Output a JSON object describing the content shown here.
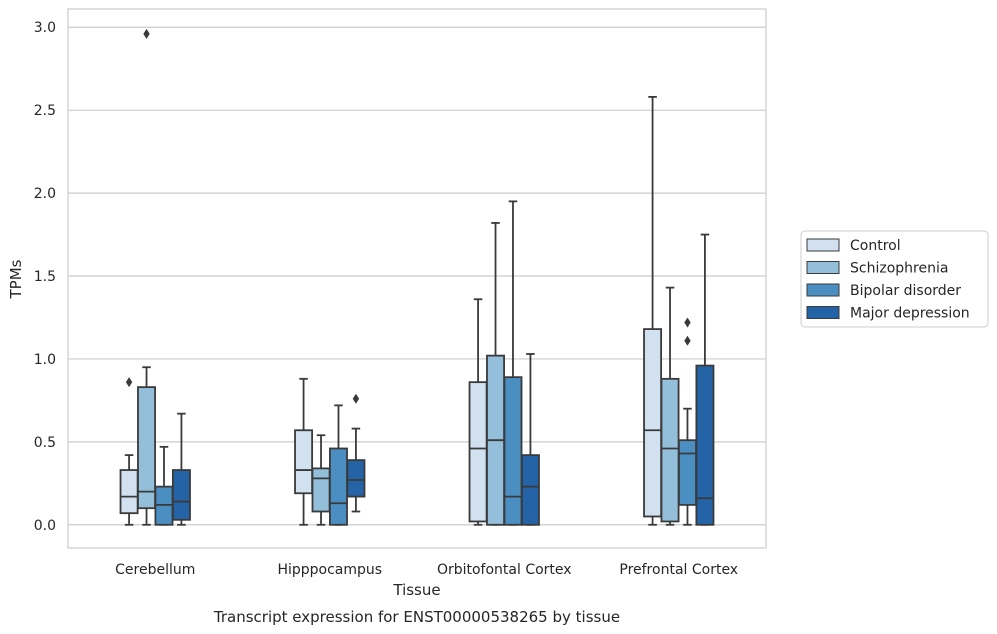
{
  "chart_data": {
    "type": "box",
    "title": "",
    "caption": "Transcript expression for ENST00000538265 by tissue",
    "xlabel": "Tissue",
    "ylabel": "TPMs",
    "ylim": [
      -0.14,
      3.11
    ],
    "yticks": [
      "0.0",
      "0.5",
      "1.0",
      "1.5",
      "2.0",
      "2.5",
      "3.0"
    ],
    "categories": [
      "Cerebellum",
      "Hipppocampus",
      "Orbitofontal Cortex",
      "Prefrontal Cortex"
    ],
    "grid": "horizontal",
    "legend_position": "right",
    "colors": [
      "#d2e1f0",
      "#93bfdb",
      "#4b8fc2",
      "#2463a5"
    ],
    "series": [
      {
        "name": "Control",
        "boxes": [
          {
            "whislo": 0.0,
            "q1": 0.07,
            "med": 0.17,
            "q3": 0.33,
            "whishi": 0.42,
            "fliers": [
              0.86
            ]
          },
          {
            "whislo": 0.0,
            "q1": 0.19,
            "med": 0.33,
            "q3": 0.57,
            "whishi": 0.88,
            "fliers": []
          },
          {
            "whislo": 0.0,
            "q1": 0.02,
            "med": 0.46,
            "q3": 0.86,
            "whishi": 1.36,
            "fliers": []
          },
          {
            "whislo": 0.0,
            "q1": 0.05,
            "med": 0.57,
            "q3": 1.18,
            "whishi": 2.58,
            "fliers": []
          }
        ]
      },
      {
        "name": "Schizophrenia",
        "boxes": [
          {
            "whislo": 0.0,
            "q1": 0.1,
            "med": 0.2,
            "q3": 0.83,
            "whishi": 0.95,
            "fliers": [
              2.96
            ]
          },
          {
            "whislo": 0.0,
            "q1": 0.08,
            "med": 0.28,
            "q3": 0.34,
            "whishi": 0.54,
            "fliers": []
          },
          {
            "whislo": 0.0,
            "q1": 0.0,
            "med": 0.51,
            "q3": 1.02,
            "whishi": 1.82,
            "fliers": []
          },
          {
            "whislo": 0.0,
            "q1": 0.02,
            "med": 0.46,
            "q3": 0.88,
            "whishi": 1.43,
            "fliers": []
          }
        ]
      },
      {
        "name": "Bipolar disorder",
        "boxes": [
          {
            "whislo": 0.0,
            "q1": 0.0,
            "med": 0.12,
            "q3": 0.23,
            "whishi": 0.47,
            "fliers": []
          },
          {
            "whislo": 0.0,
            "q1": 0.0,
            "med": 0.13,
            "q3": 0.46,
            "whishi": 0.72,
            "fliers": []
          },
          {
            "whislo": 0.0,
            "q1": 0.0,
            "med": 0.17,
            "q3": 0.89,
            "whishi": 1.95,
            "fliers": []
          },
          {
            "whislo": 0.0,
            "q1": 0.12,
            "med": 0.43,
            "q3": 0.51,
            "whishi": 0.7,
            "fliers": [
              1.22,
              1.11
            ]
          }
        ]
      },
      {
        "name": "Major depression",
        "boxes": [
          {
            "whislo": 0.0,
            "q1": 0.03,
            "med": 0.14,
            "q3": 0.33,
            "whishi": 0.67,
            "fliers": []
          },
          {
            "whislo": 0.08,
            "q1": 0.17,
            "med": 0.27,
            "q3": 0.39,
            "whishi": 0.58,
            "fliers": [
              0.76
            ]
          },
          {
            "whislo": 0.0,
            "q1": 0.0,
            "med": 0.23,
            "q3": 0.42,
            "whishi": 1.03,
            "fliers": []
          },
          {
            "whislo": 0.0,
            "q1": 0.0,
            "med": 0.16,
            "q3": 0.96,
            "whishi": 1.75,
            "fliers": []
          }
        ]
      }
    ]
  }
}
